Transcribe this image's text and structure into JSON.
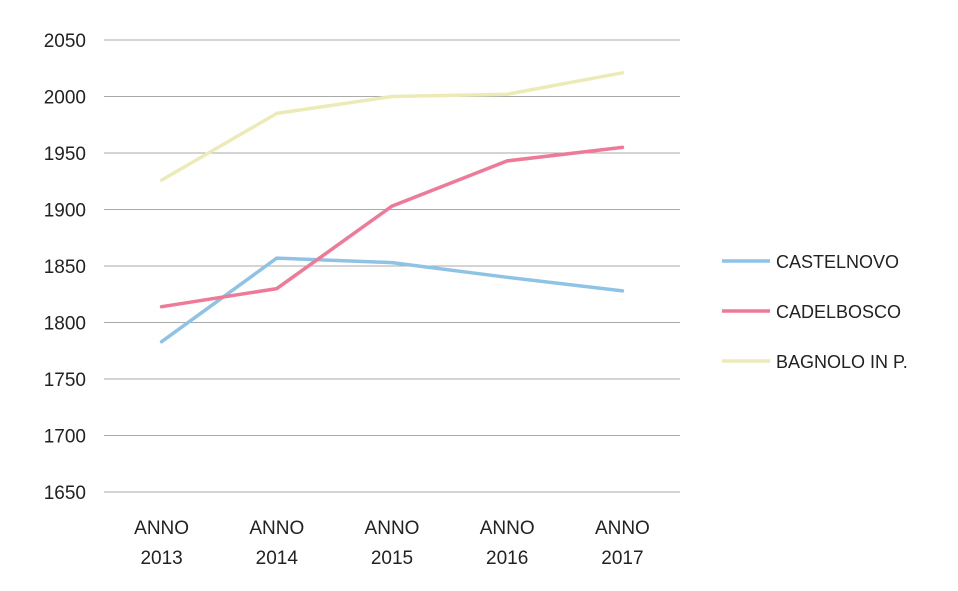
{
  "chart_data": {
    "type": "line",
    "title": "",
    "xlabel": "",
    "ylabel": "",
    "categories": [
      [
        "ANNO",
        "2013"
      ],
      [
        "ANNO",
        "2014"
      ],
      [
        "ANNO",
        "2015"
      ],
      [
        "ANNO",
        "2016"
      ],
      [
        "ANNO",
        "2017"
      ]
    ],
    "ylim": [
      1650,
      2050
    ],
    "yticks": [
      1650,
      1700,
      1750,
      1800,
      1850,
      1900,
      1950,
      2000,
      2050
    ],
    "grid": true,
    "legend_position": "right",
    "series": [
      {
        "name": "CASTELNOVO",
        "color": "#8fc3e6",
        "values": [
          1783,
          1857,
          1853,
          1840,
          1828
        ]
      },
      {
        "name": "CADELBOSCO",
        "color": "#ef7a98",
        "values": [
          1814,
          1830,
          1903,
          1943,
          1955
        ]
      },
      {
        "name": "BAGNOLO IN P.",
        "color": "#ecebb8",
        "values": [
          1926,
          1985,
          2000,
          2002,
          2021
        ]
      }
    ]
  }
}
